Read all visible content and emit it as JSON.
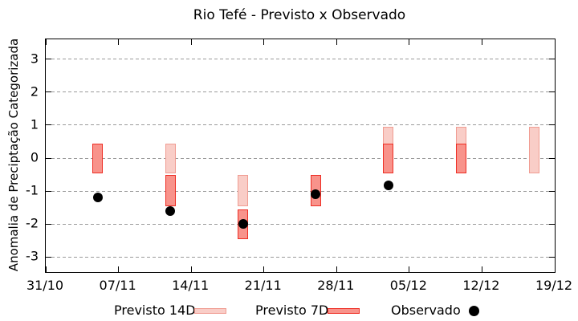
{
  "title": "Rio Tefé - Previsto x Observado",
  "ylabel": "Anomalia de Preciptação Categorizada",
  "legend": {
    "items": [
      {
        "label": "Previsto 14D",
        "marker": "box",
        "fill": "#f9cdc7",
        "stroke": "#f09c92"
      },
      {
        "label": "Previsto 7D",
        "marker": "box",
        "fill": "#f8938b",
        "stroke": "#ee2e24"
      },
      {
        "label": "Observado",
        "marker": "dot",
        "fill": "#000000"
      }
    ]
  },
  "colors": {
    "previsto_14d_fill": "#f9cdc7",
    "previsto_14d_stroke": "#f09c92",
    "previsto_7d_fill": "#f8938b",
    "previsto_7d_stroke": "#ee2e24",
    "observado": "#000000",
    "grid": "#9a9a9a",
    "axis": "#000000"
  },
  "chart_data": {
    "type": "bar",
    "subtype": "range-bars-with-scatter",
    "title": "Rio Tefé - Previsto x Observado",
    "xlabel": "",
    "ylabel": "Anomalia de Preciptação Categorizada",
    "grid": true,
    "legend_position": "bottom",
    "x_axis": {
      "tick_labels": [
        "31/10",
        "07/11",
        "14/11",
        "21/11",
        "28/11",
        "05/12",
        "12/12",
        "19/12"
      ],
      "tick_days": [
        0,
        7,
        14,
        21,
        28,
        35,
        42,
        49
      ],
      "xlim_days": [
        0,
        49
      ]
    },
    "y_axis": {
      "ticks": [
        3,
        2,
        1,
        0,
        -1,
        -2,
        -3
      ],
      "ylim": [
        -3.45,
        3.6
      ]
    },
    "series": [
      {
        "name": "Previsto 14D",
        "style": "range-bar",
        "points": [
          {
            "date": "12/11",
            "day": 12,
            "low": -0.45,
            "high": 0.45
          },
          {
            "date": "19/11",
            "day": 19,
            "low": -1.45,
            "high": -0.5
          },
          {
            "date": "03/12",
            "day": 33,
            "low": -0.45,
            "high": 0.95
          },
          {
            "date": "10/12",
            "day": 40,
            "low": -0.45,
            "high": 0.95
          },
          {
            "date": "17/12",
            "day": 47,
            "low": -0.45,
            "high": 0.95
          }
        ]
      },
      {
        "name": "Previsto 7D",
        "style": "range-bar",
        "points": [
          {
            "date": "05/11",
            "day": 5,
            "low": -0.45,
            "high": 0.45
          },
          {
            "date": "12/11",
            "day": 12,
            "low": -1.45,
            "high": -0.5
          },
          {
            "date": "19/11",
            "day": 19,
            "low": -2.45,
            "high": -1.55
          },
          {
            "date": "26/11",
            "day": 26,
            "low": -1.45,
            "high": -0.5
          },
          {
            "date": "03/12",
            "day": 33,
            "low": -0.45,
            "high": 0.45
          },
          {
            "date": "10/12",
            "day": 40,
            "low": -0.45,
            "high": 0.45
          }
        ]
      },
      {
        "name": "Observado",
        "style": "scatter",
        "points": [
          {
            "date": "05/11",
            "day": 5,
            "value": -1.2
          },
          {
            "date": "12/11",
            "day": 12,
            "value": -1.6
          },
          {
            "date": "19/11",
            "day": 19,
            "value": -2.0
          },
          {
            "date": "26/11",
            "day": 26,
            "value": -1.1
          },
          {
            "date": "03/12",
            "day": 33,
            "value": -0.83
          }
        ]
      }
    ]
  }
}
